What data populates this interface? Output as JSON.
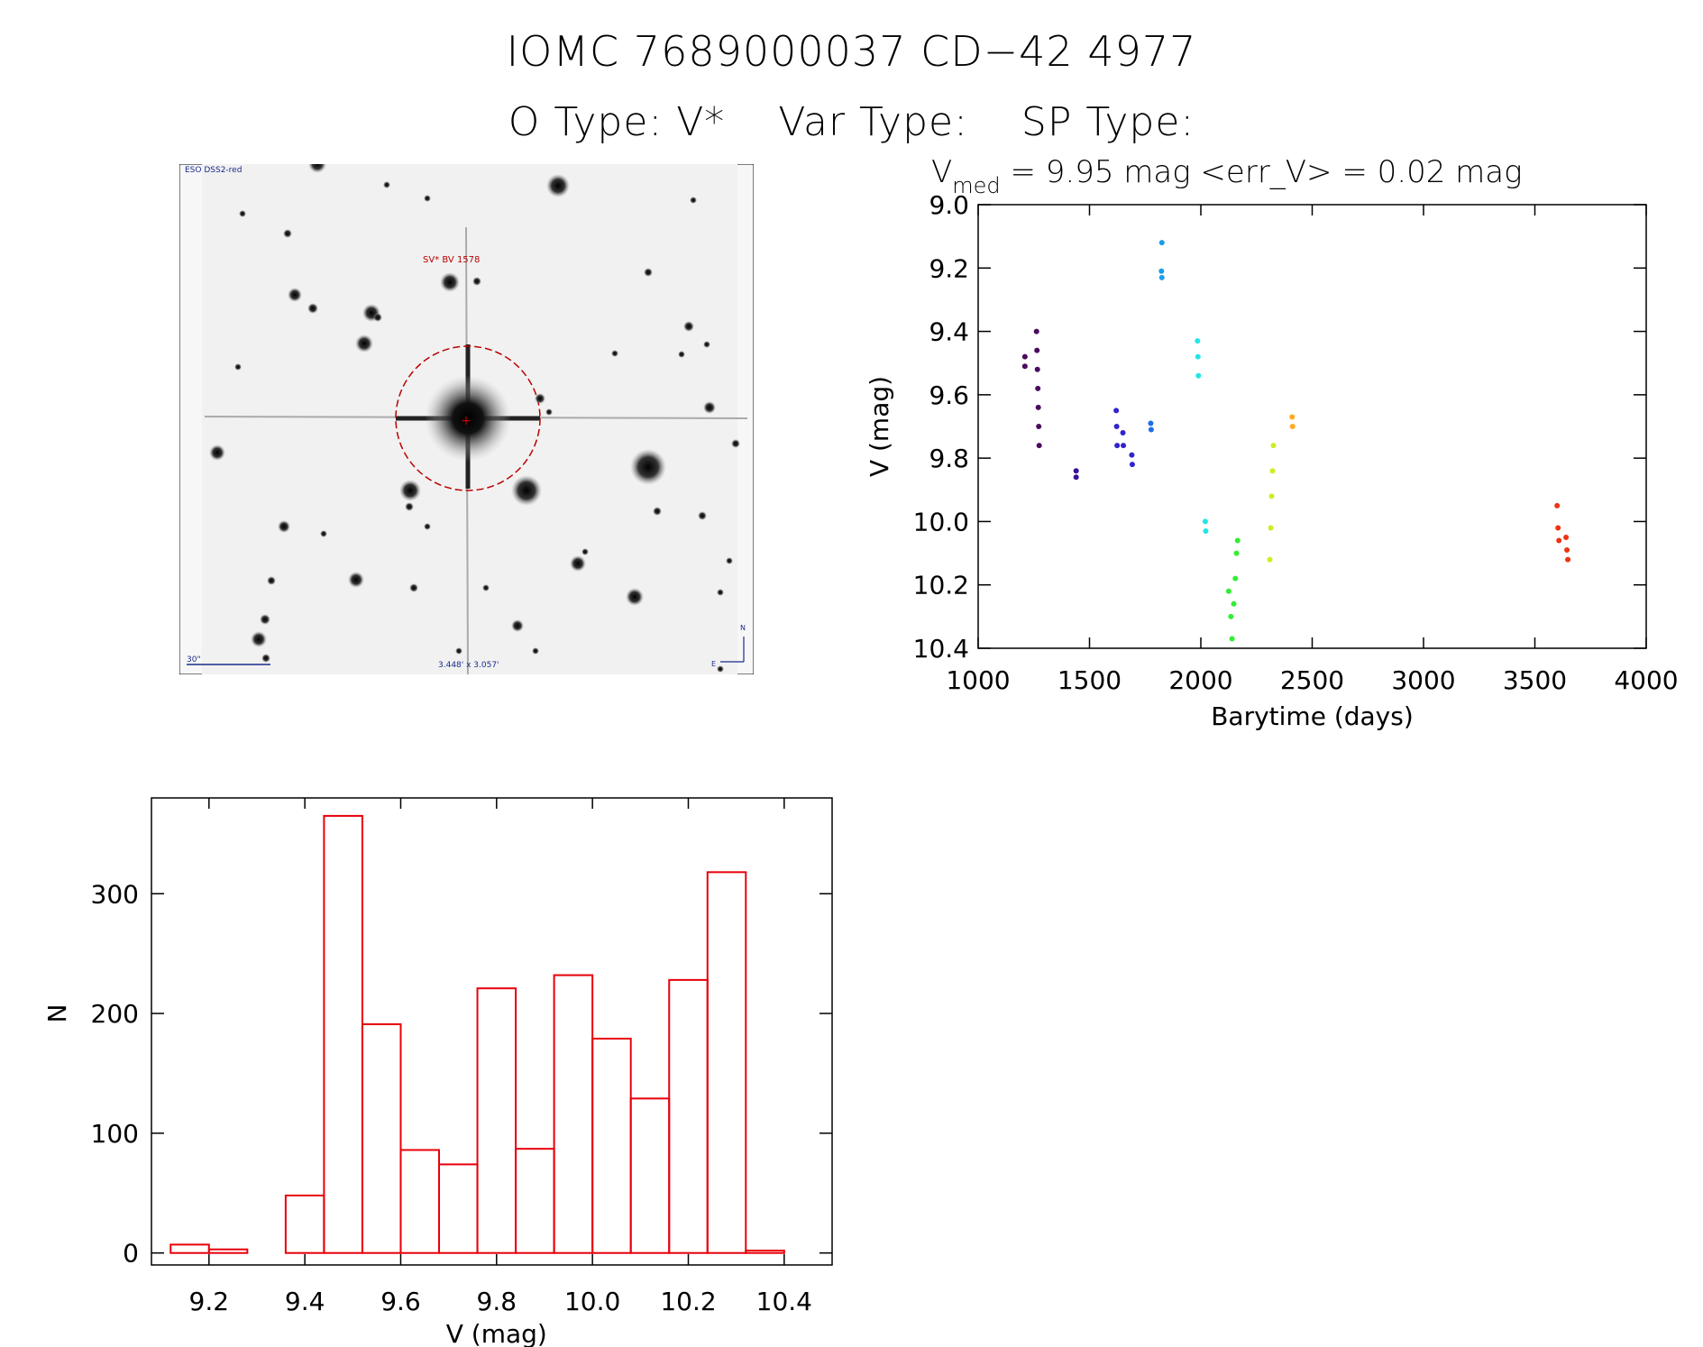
{
  "header": {
    "title": "IOMC 7689000037   CD−42  4977",
    "o_type": "O Type: V*",
    "var_type": "Var Type:",
    "sp_type": "SP Type:"
  },
  "stamp": {
    "survey_label": "ESO DSS2-red",
    "object_label": "SV* BV 1578",
    "scale_label": "30\"",
    "size_label": "3.448' x 3.057'",
    "compass_n": "N",
    "compass_e": "E"
  },
  "colors": {
    "hist": "#e8000b",
    "axis": "#000000"
  },
  "chart_data": [
    {
      "type": "scatter",
      "title_prefix": "V",
      "title_sub": "med",
      "title_rest": " = 9.95 mag <err_V> = 0.02 mag",
      "xlabel": "Barytime (days)",
      "ylabel": "V (mag)",
      "xlim": [
        1000,
        4000
      ],
      "ylim": [
        10.4,
        9.0
      ],
      "y_inverted": true,
      "xticks": [
        1000,
        1500,
        2000,
        2500,
        3000,
        3500,
        4000
      ],
      "yticks": [
        9.0,
        9.2,
        9.4,
        9.6,
        9.8,
        10.0,
        10.2,
        10.4
      ],
      "series": [
        {
          "color": "#4a0a5e",
          "points": [
            [
              1210,
              9.48
            ],
            [
              1210,
              9.51
            ],
            [
              1262,
              9.4
            ],
            [
              1264,
              9.46
            ],
            [
              1266,
              9.52
            ],
            [
              1268,
              9.58
            ],
            [
              1270,
              9.64
            ],
            [
              1272,
              9.7
            ],
            [
              1274,
              9.76
            ]
          ]
        },
        {
          "color": "#3a0d9a",
          "points": [
            [
              1440,
              9.84
            ],
            [
              1440,
              9.86
            ]
          ]
        },
        {
          "color": "#3322cc",
          "points": [
            [
              1620,
              9.65
            ],
            [
              1622,
              9.7
            ],
            [
              1624,
              9.76
            ],
            [
              1650,
              9.72
            ],
            [
              1652,
              9.76
            ],
            [
              1690,
              9.79
            ],
            [
              1692,
              9.82
            ]
          ]
        },
        {
          "color": "#1e6ee8",
          "points": [
            [
              1775,
              9.69
            ],
            [
              1777,
              9.71
            ]
          ]
        },
        {
          "color": "#1a9ee8",
          "points": [
            [
              1825,
              9.12
            ],
            [
              1823,
              9.21
            ],
            [
              1825,
              9.23
            ]
          ]
        },
        {
          "color": "#22e6e6",
          "points": [
            [
              1985,
              9.43
            ],
            [
              1987,
              9.48
            ],
            [
              1989,
              9.54
            ],
            [
              2020,
              10.0
            ],
            [
              2022,
              10.03
            ]
          ]
        },
        {
          "color": "#33ee33",
          "points": [
            [
              2125,
              10.22
            ],
            [
              2135,
              10.3
            ],
            [
              2140,
              10.37
            ],
            [
              2148,
              10.26
            ],
            [
              2155,
              10.18
            ],
            [
              2160,
              10.1
            ],
            [
              2165,
              10.06
            ]
          ]
        },
        {
          "color": "#ccee22",
          "points": [
            [
              2310,
              10.12
            ],
            [
              2314,
              10.02
            ],
            [
              2318,
              9.92
            ],
            [
              2322,
              9.84
            ],
            [
              2326,
              9.76
            ]
          ]
        },
        {
          "color": "#ffaa22",
          "points": [
            [
              2410,
              9.67
            ],
            [
              2412,
              9.7
            ]
          ]
        },
        {
          "color": "#ee3311",
          "points": [
            [
              3600,
              9.95
            ],
            [
              3604,
              10.02
            ],
            [
              3608,
              10.06
            ],
            [
              3640,
              10.05
            ],
            [
              3644,
              10.09
            ],
            [
              3648,
              10.12
            ]
          ]
        }
      ]
    },
    {
      "type": "bar",
      "xlabel": "V (mag)",
      "ylabel": "N",
      "xlim": [
        9.08,
        10.5
      ],
      "ylim": [
        -10,
        380
      ],
      "xticks": [
        9.2,
        9.4,
        9.6,
        9.8,
        10.0,
        10.2,
        10.4
      ],
      "yticks": [
        0,
        100,
        200,
        300
      ],
      "bin_width": 0.08,
      "bin_starts": [
        9.12,
        9.2,
        9.28,
        9.36,
        9.44,
        9.52,
        9.6,
        9.68,
        9.76,
        9.84,
        9.92,
        10.0,
        10.08,
        10.16,
        10.24,
        10.32,
        10.4
      ],
      "values": [
        7,
        3,
        0,
        48,
        365,
        191,
        86,
        74,
        221,
        87,
        232,
        179,
        129,
        228,
        318,
        2,
        0
      ]
    }
  ]
}
